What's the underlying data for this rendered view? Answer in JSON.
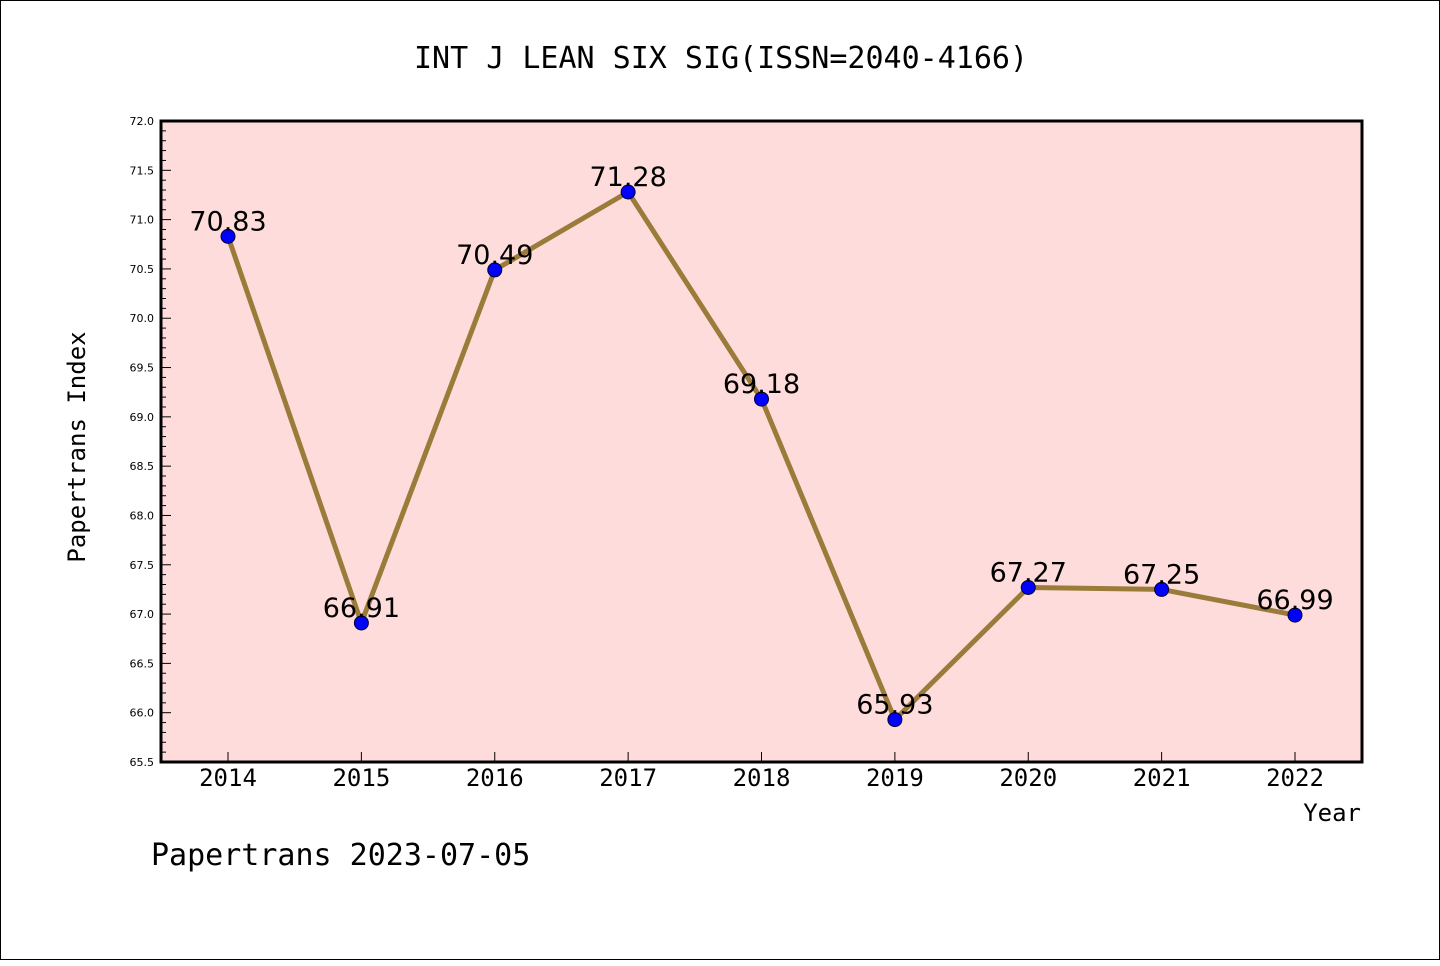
{
  "chart_data": {
    "type": "line",
    "title": "INT J LEAN SIX SIG(ISSN=2040-4166)",
    "xlabel": "Year",
    "ylabel": "Papertrans Index",
    "categories": [
      "2014",
      "2015",
      "2016",
      "2017",
      "2018",
      "2019",
      "2020",
      "2021",
      "2022"
    ],
    "series": [
      {
        "values": [
          70.83,
          66.91,
          70.49,
          71.28,
          69.18,
          65.93,
          67.27,
          67.25,
          66.99
        ],
        "labels": [
          "70.83",
          "66.91",
          "70.49",
          "71.28",
          "69.18",
          "65.93",
          "67.27",
          "67.25",
          "66.99"
        ]
      }
    ],
    "ylim": [
      65.5,
      72.0
    ],
    "yticks": [
      "65.5",
      "66.0",
      "66.5",
      "67.0",
      "67.5",
      "68.0",
      "68.5",
      "69.0",
      "69.5",
      "70.0",
      "70.5",
      "71.0",
      "71.5",
      "72.0"
    ],
    "grid": false,
    "colors": {
      "line": "#9a7b3a",
      "marker": "#0000ff",
      "plot_bg": "#ffdcdc"
    }
  },
  "footer": "Papertrans 2023-07-05"
}
